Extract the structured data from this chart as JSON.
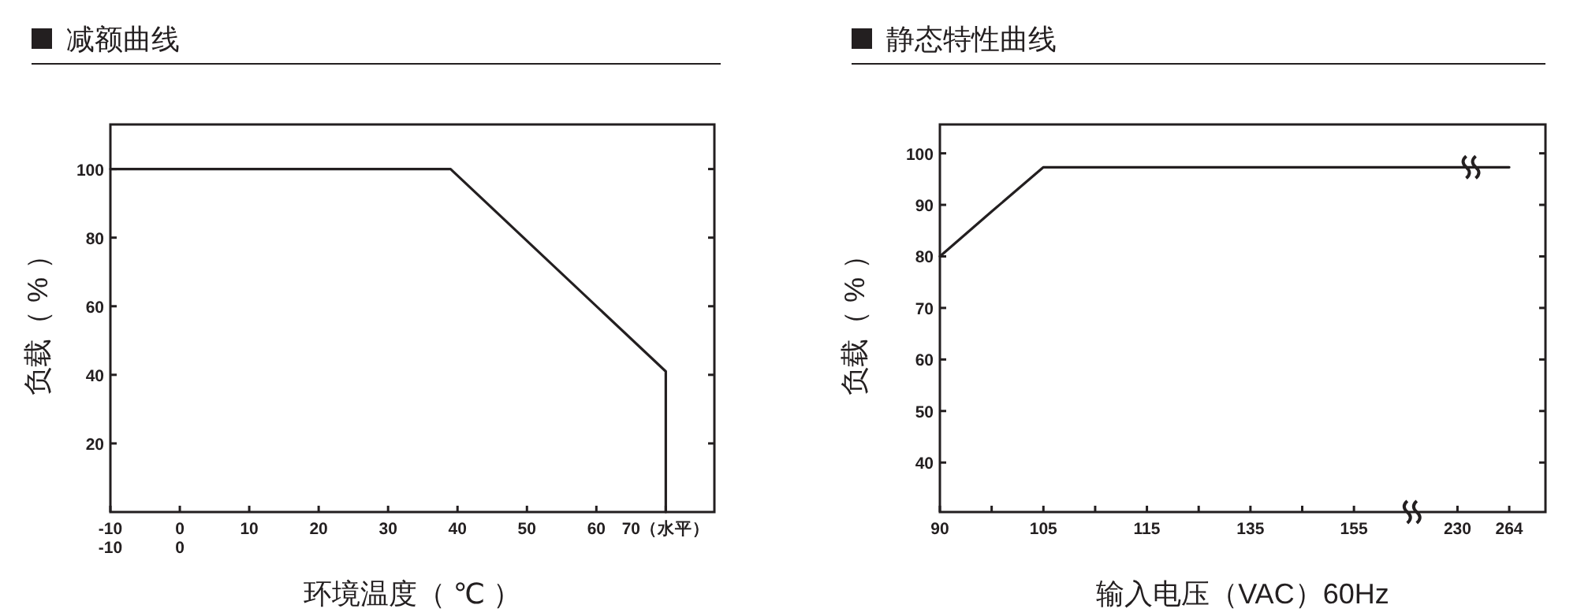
{
  "chart_data": [
    {
      "type": "line",
      "title": "减额曲线",
      "xlabel": "环境温度（ ℃ ）",
      "ylabel": "负载（ % ）",
      "x": [
        -10,
        39,
        70,
        70
      ],
      "values": [
        100,
        100,
        41,
        0
      ],
      "color": "#231f20",
      "marker": "none",
      "line_style": "solid",
      "xlim": [
        -10,
        77
      ],
      "ylim": [
        0,
        113
      ],
      "xticks": [
        {
          "value": -10,
          "label": "-10\n-10"
        },
        {
          "value": 0,
          "label": "0\n0"
        },
        10,
        20,
        30,
        40,
        50,
        60,
        {
          "value": 70,
          "label": "70（水平）"
        }
      ],
      "yticks": [
        20,
        40,
        60,
        80,
        100
      ]
    },
    {
      "type": "line",
      "title": "静态特性曲线",
      "xlabel": "输入电压（VAC）60Hz",
      "ylabel": "负载（ % ）",
      "categories": [
        "90",
        null,
        "105",
        null,
        "115",
        null,
        "135",
        null,
        "155",
        null,
        "230",
        "264"
      ],
      "values": [
        80,
        88.7,
        97.3,
        97.3,
        97.3,
        97.3,
        97.3,
        97.3,
        97.3,
        97.3,
        97.3,
        97.3
      ],
      "color": "#231f20",
      "marker": "none",
      "line_style": "solid",
      "ylim": [
        30.4,
        105.6
      ],
      "yticks": [
        40,
        50,
        60,
        70,
        80,
        90,
        100
      ]
    }
  ]
}
